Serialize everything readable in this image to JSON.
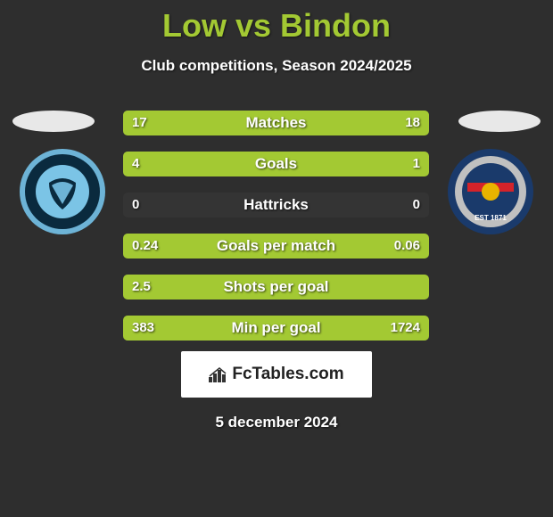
{
  "title": "Low vs Bindon",
  "subtitle": "Club competitions, Season 2024/2025",
  "date": "5 december 2024",
  "logo_text": "FcTables.com",
  "colors": {
    "bg": "#2e2e2e",
    "accent": "#a3c933",
    "bar_track": "#343434",
    "text": "#ffffff",
    "logo_bg": "#ffffff",
    "logo_text": "#222222"
  },
  "badge_left": {
    "outer": "#6db3d6",
    "mid": "#0a2a3e",
    "inner": "#7bc4e6"
  },
  "badge_right": {
    "outer": "#1a3a6b",
    "mid": "#c0c0c0",
    "stripe1": "#d4232a",
    "stripe2": "#1a3a6b",
    "center": "#e8b400"
  },
  "stats": [
    {
      "label": "Matches",
      "left_val": "17",
      "right_val": "18",
      "left_pct": 48.6,
      "right_pct": 51.4
    },
    {
      "label": "Goals",
      "left_val": "4",
      "right_val": "1",
      "left_pct": 80.0,
      "right_pct": 20.0
    },
    {
      "label": "Hattricks",
      "left_val": "0",
      "right_val": "0",
      "left_pct": 0,
      "right_pct": 0
    },
    {
      "label": "Goals per match",
      "left_val": "0.24",
      "right_val": "0.06",
      "left_pct": 80.0,
      "right_pct": 20.0
    },
    {
      "label": "Shots per goal",
      "left_val": "2.5",
      "right_val": "",
      "left_pct": 100.0,
      "right_pct": 0
    },
    {
      "label": "Min per goal",
      "left_val": "383",
      "right_val": "1724",
      "left_pct": 18.2,
      "right_pct": 81.8
    }
  ]
}
